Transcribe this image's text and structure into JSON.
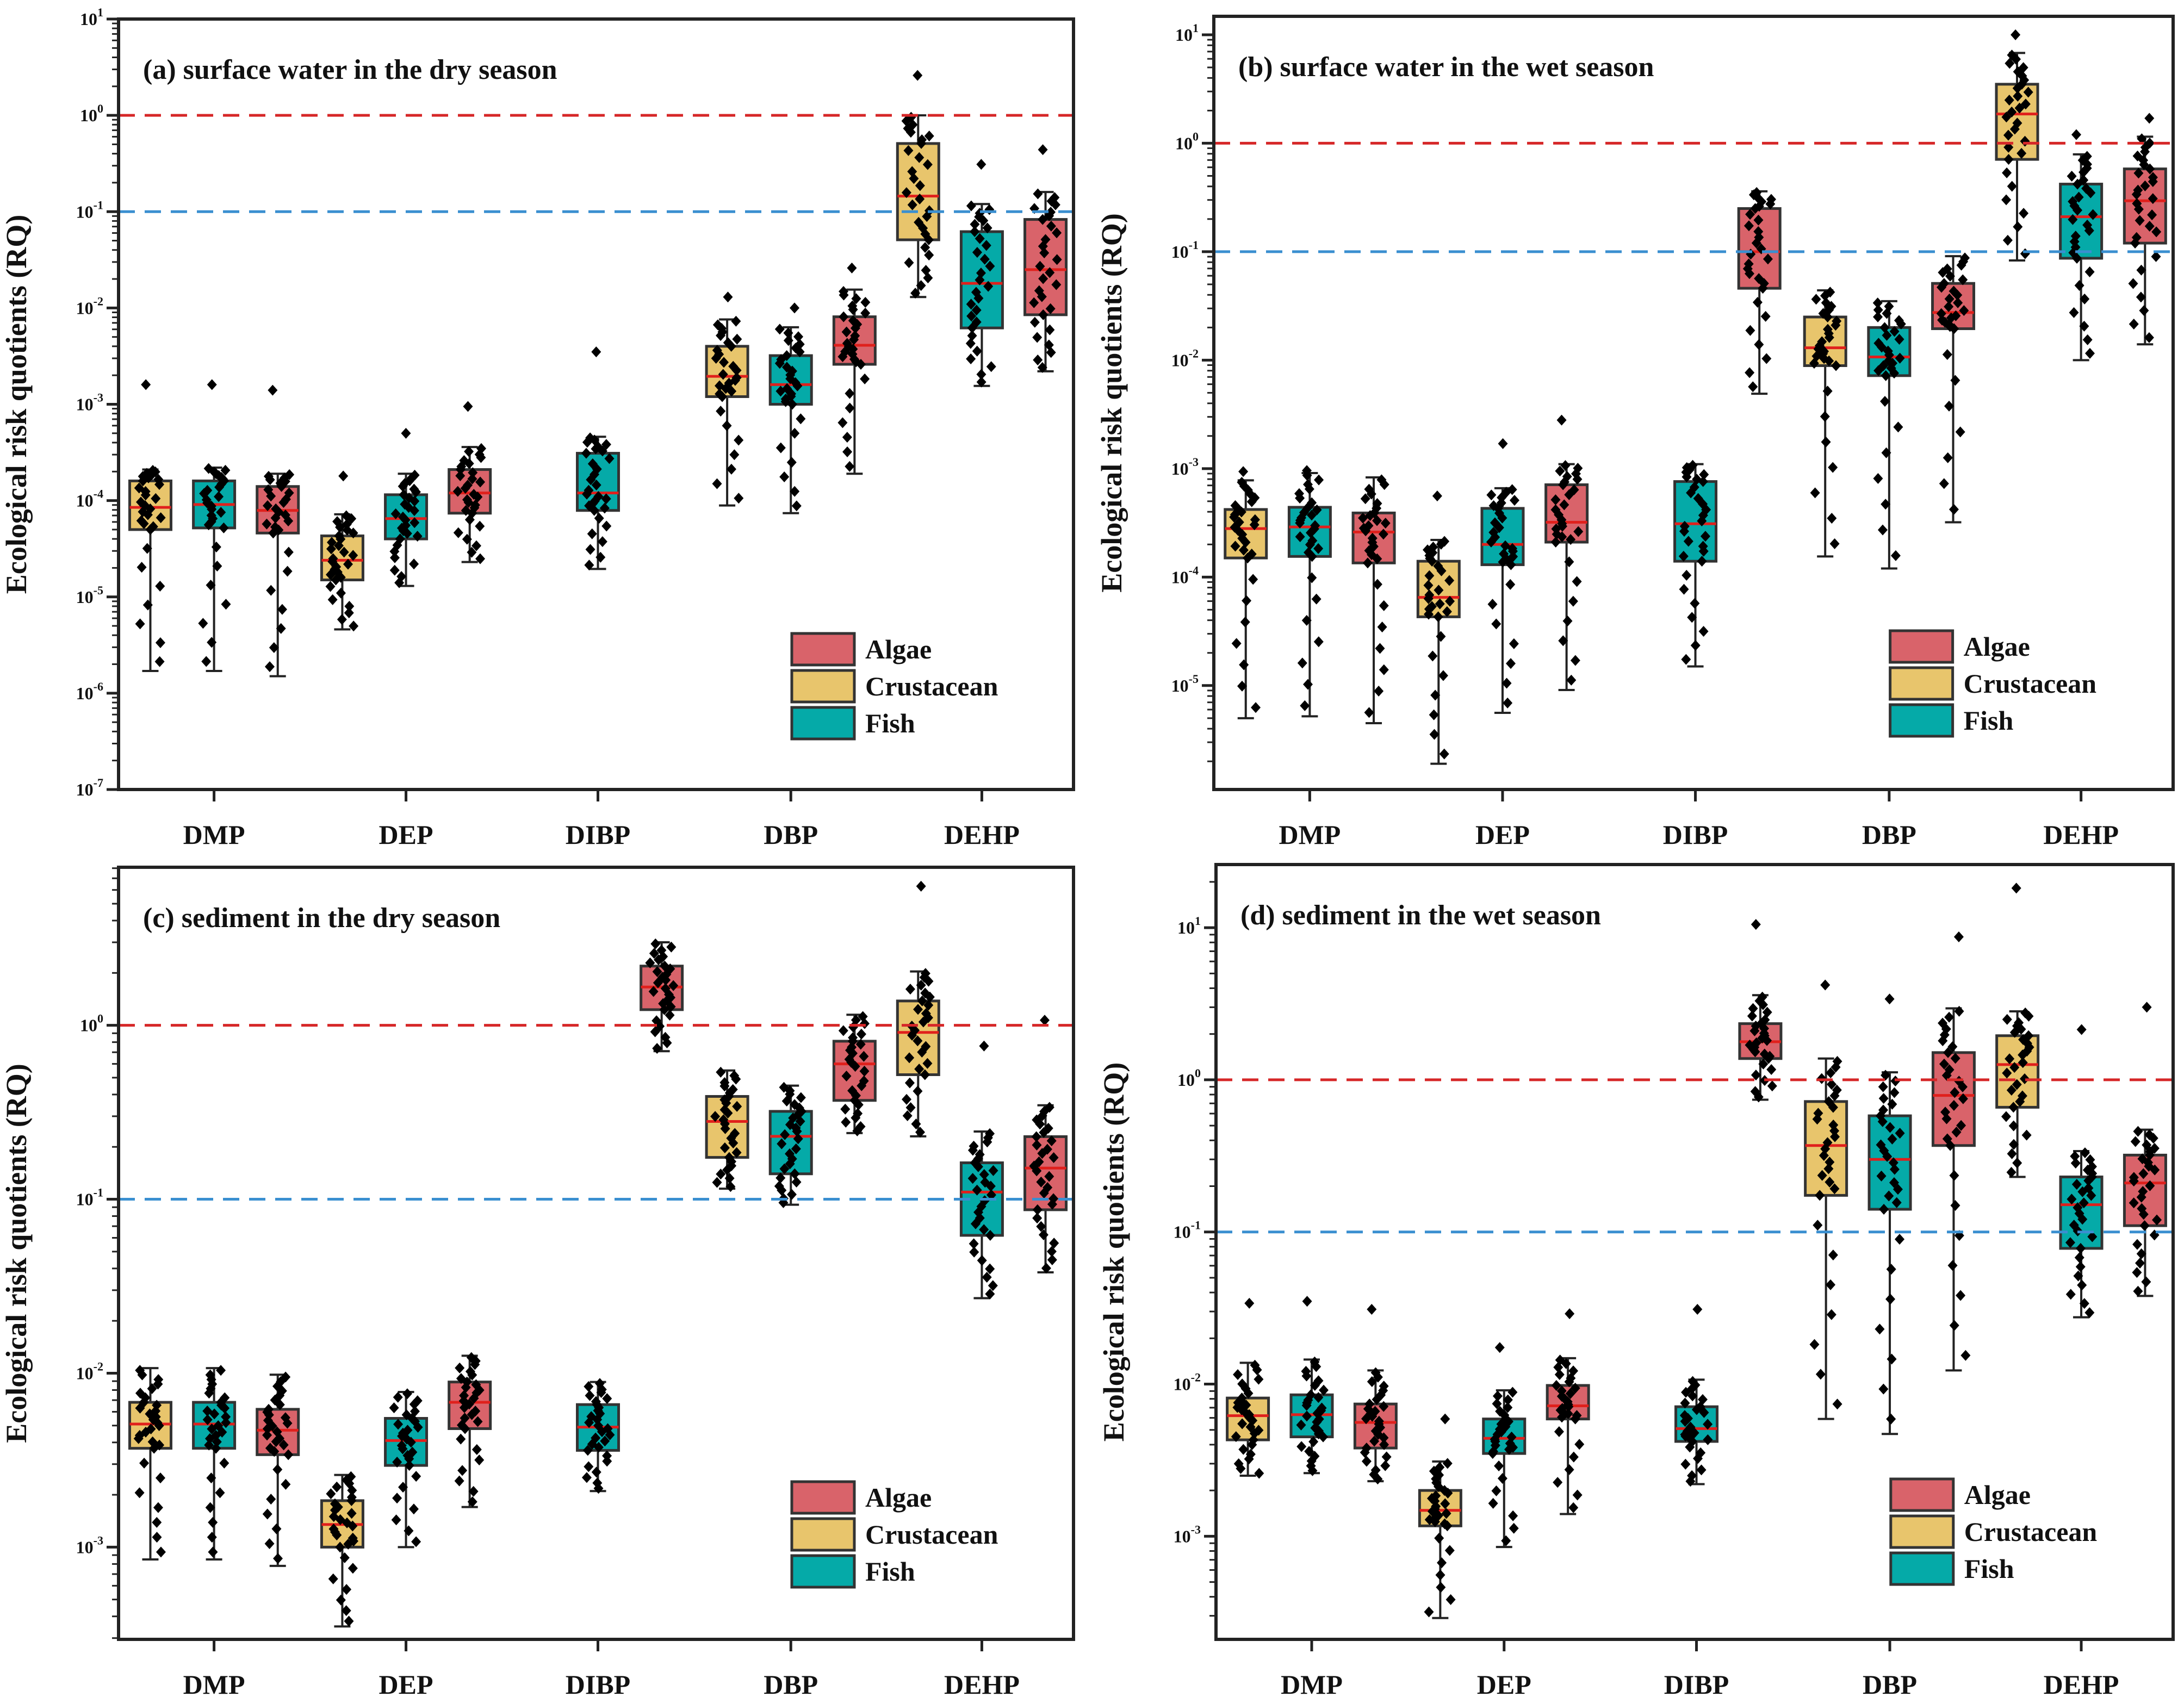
{
  "figure": {
    "y_axis_label": "Ecological risk quotients (RQ)"
  },
  "legend": [
    {
      "name": "Algae",
      "color": "#d9636a"
    },
    {
      "name": "Crustacean",
      "color": "#e8c56c"
    },
    {
      "name": "Fish",
      "color": "#05aaa8"
    }
  ],
  "colors": {
    "median": "#e0201c",
    "points": "#000000",
    "box_edge": "#333333"
  },
  "chart_data": [
    {
      "type": "box",
      "title": "(a) surface water in the dry season",
      "ylabel": "Ecological risk quotients (RQ)",
      "yscale": "log",
      "ylim": [
        1e-07,
        10
      ],
      "yticks": [
        "-7",
        "-6",
        "-5",
        "-4",
        "-3",
        "-2",
        "-1",
        "0",
        "1"
      ],
      "categories": [
        "DMP",
        "DEP",
        "DIBP",
        "DBP",
        "DEHP"
      ],
      "reference_lines": [
        {
          "value": 1,
          "color": "#d62728"
        },
        {
          "value": 0.1,
          "color": "#3a8fd0"
        }
      ],
      "boxes": [
        {
          "category": "DMP",
          "group": "Crustacean",
          "min": 1.7e-06,
          "q1": 5e-05,
          "median": 8.5e-05,
          "q3": 0.00016,
          "max": 0.00021,
          "top_point": 0.0016
        },
        {
          "category": "DMP",
          "group": "Fish",
          "min": 1.7e-06,
          "q1": 5.2e-05,
          "median": 9.1e-05,
          "q3": 0.00016,
          "max": 0.00022,
          "top_point": 0.0016
        },
        {
          "category": "DMP",
          "group": "Algae",
          "min": 1.5e-06,
          "q1": 4.6e-05,
          "median": 7.9e-05,
          "q3": 0.00014,
          "max": 0.00019,
          "top_point": 0.0014
        },
        {
          "category": "DEP",
          "group": "Crustacean",
          "min": 4.6e-06,
          "q1": 1.5e-05,
          "median": 2.4e-05,
          "q3": 4.3e-05,
          "max": 7.2e-05,
          "top_point": 0.00018
        },
        {
          "category": "DEP",
          "group": "Fish",
          "min": 1.3e-05,
          "q1": 4e-05,
          "median": 6.5e-05,
          "q3": 0.000115,
          "max": 0.00019,
          "top_point": 0.0005
        },
        {
          "category": "DEP",
          "group": "Algae",
          "min": 2.3e-05,
          "q1": 7.4e-05,
          "median": 0.00012,
          "q3": 0.00021,
          "max": 0.00036,
          "top_point": 0.00095
        },
        {
          "category": "DIBP",
          "group": "Fish",
          "min": 1.95e-05,
          "q1": 7.9e-05,
          "median": 0.00012,
          "q3": 0.00031,
          "max": 0.00046,
          "top_point": 0.0035
        },
        {
          "category": "DBP",
          "group": "Crustacean",
          "min": 8.9e-05,
          "q1": 0.0012,
          "median": 0.00195,
          "q3": 0.004,
          "max": 0.0076,
          "top_point": 0.013
        },
        {
          "category": "DBP",
          "group": "Fish",
          "min": 7.4e-05,
          "q1": 0.001,
          "median": 0.0016,
          "q3": 0.0032,
          "max": 0.0063,
          "top_point": 0.01
        },
        {
          "category": "DBP",
          "group": "Algae",
          "min": 0.00019,
          "q1": 0.0026,
          "median": 0.0041,
          "q3": 0.0081,
          "max": 0.0155,
          "top_point": 0.026
        },
        {
          "category": "DEHP",
          "group": "Crustacean",
          "min": 0.013,
          "q1": 0.051,
          "median": 0.145,
          "q3": 0.51,
          "max": 1.0,
          "top_point": 2.6
        },
        {
          "category": "DEHP",
          "group": "Fish",
          "min": 0.00155,
          "q1": 0.0062,
          "median": 0.018,
          "q3": 0.062,
          "max": 0.12,
          "top_point": 0.31
        },
        {
          "category": "DEHP",
          "group": "Algae",
          "min": 0.0022,
          "q1": 0.0085,
          "median": 0.025,
          "q3": 0.083,
          "max": 0.16,
          "top_point": 0.44
        }
      ]
    },
    {
      "type": "box",
      "title": "(b) surface water in the wet season",
      "ylabel": "Ecological risk quotients (RQ)",
      "yscale": "log",
      "ylim": [
        1.1e-06,
        14.8
      ],
      "yticks": [
        "-5",
        "-4",
        "-3",
        "-2",
        "-1",
        "0",
        "1"
      ],
      "categories": [
        "DMP",
        "DEP",
        "DIBP",
        "DBP",
        "DEHP"
      ],
      "reference_lines": [
        {
          "value": 1,
          "color": "#d62728"
        },
        {
          "value": 0.1,
          "color": "#3a8fd0"
        }
      ],
      "boxes": [
        {
          "category": "DMP",
          "group": "Crustacean",
          "min": 5e-06,
          "q1": 0.00015,
          "median": 0.00028,
          "q3": 0.00042,
          "max": 0.00078,
          "top_point": 0.00094
        },
        {
          "category": "DMP",
          "group": "Fish",
          "min": 5.2e-06,
          "q1": 0.000155,
          "median": 0.00029,
          "q3": 0.00044,
          "max": 0.00091,
          "top_point": 0.00096
        },
        {
          "category": "DMP",
          "group": "Algae",
          "min": 4.5e-06,
          "q1": 0.000135,
          "median": 0.00026,
          "q3": 0.00039,
          "max": 0.00083,
          "top_point": 0.00083
        },
        {
          "category": "DEP",
          "group": "Crustacean",
          "min": 1.9e-06,
          "q1": 4.3e-05,
          "median": 6.5e-05,
          "q3": 0.00014,
          "max": 0.00022,
          "top_point": 0.00056
        },
        {
          "category": "DEP",
          "group": "Fish",
          "min": 5.6e-06,
          "q1": 0.00013,
          "median": 0.0002,
          "q3": 0.00043,
          "max": 0.00066,
          "top_point": 0.0017
        },
        {
          "category": "DEP",
          "group": "Algae",
          "min": 9.1e-06,
          "q1": 0.00021,
          "median": 0.00032,
          "q3": 0.00071,
          "max": 0.0011,
          "top_point": 0.0028
        },
        {
          "category": "DIBP",
          "group": "Fish",
          "min": 1.5e-05,
          "q1": 0.00014,
          "median": 0.00031,
          "q3": 0.00076,
          "max": 0.0011,
          "top_point": 0.0011
        },
        {
          "category": "DIBP",
          "group": "Algae",
          "min": 0.0049,
          "q1": 0.046,
          "median": 0.1,
          "q3": 0.25,
          "max": 0.36,
          "top_point": 0.36
        },
        {
          "category": "DBP",
          "group": "Crustacean",
          "min": 0.000155,
          "q1": 0.0089,
          "median": 0.013,
          "q3": 0.025,
          "max": 0.044,
          "top_point": 0.044
        },
        {
          "category": "DBP",
          "group": "Fish",
          "min": 0.00012,
          "q1": 0.0072,
          "median": 0.0107,
          "q3": 0.02,
          "max": 0.035,
          "top_point": 0.035
        },
        {
          "category": "DBP",
          "group": "Algae",
          "min": 0.00032,
          "q1": 0.0195,
          "median": 0.0275,
          "q3": 0.051,
          "max": 0.091,
          "top_point": 0.091
        },
        {
          "category": "DEHP",
          "group": "Crustacean",
          "min": 0.083,
          "q1": 0.71,
          "median": 1.86,
          "q3": 3.5,
          "max": 6.8,
          "top_point": 10
        },
        {
          "category": "DEHP",
          "group": "Fish",
          "min": 0.01,
          "q1": 0.087,
          "median": 0.21,
          "q3": 0.42,
          "max": 0.79,
          "top_point": 1.2
        },
        {
          "category": "DEHP",
          "group": "Algae",
          "min": 0.014,
          "q1": 0.12,
          "median": 0.295,
          "q3": 0.58,
          "max": 1.15,
          "top_point": 1.7
        }
      ]
    },
    {
      "type": "box",
      "title": "(c) sediment in the dry season",
      "ylabel": "Ecological risk quotients (RQ)",
      "yscale": "log",
      "ylim": [
        0.000295,
        8.1
      ],
      "yticks": [
        "-3",
        "-2",
        "-1",
        "0"
      ],
      "categories": [
        "DMP",
        "DEP",
        "DIBP",
        "DBP",
        "DEHP"
      ],
      "reference_lines": [
        {
          "value": 1,
          "color": "#d62728"
        },
        {
          "value": 0.1,
          "color": "#3a8fd0"
        }
      ],
      "boxes": [
        {
          "category": "DMP",
          "group": "Crustacean",
          "min": 0.00085,
          "q1": 0.0037,
          "median": 0.0051,
          "q3": 0.0068,
          "max": 0.0107,
          "top_point": 0.0107
        },
        {
          "category": "DMP",
          "group": "Fish",
          "min": 0.00085,
          "q1": 0.0037,
          "median": 0.0051,
          "q3": 0.0068,
          "max": 0.0107,
          "top_point": 0.0107
        },
        {
          "category": "DMP",
          "group": "Algae",
          "min": 0.00078,
          "q1": 0.0034,
          "median": 0.0047,
          "q3": 0.0062,
          "max": 0.0098,
          "top_point": 0.0098
        },
        {
          "category": "DEP",
          "group": "Crustacean",
          "min": 0.00035,
          "q1": 0.001,
          "median": 0.00135,
          "q3": 0.00185,
          "max": 0.0026,
          "top_point": 0.0026
        },
        {
          "category": "DEP",
          "group": "Fish",
          "min": 0.001,
          "q1": 0.00295,
          "median": 0.0041,
          "q3": 0.0055,
          "max": 0.0078,
          "top_point": 0.0078
        },
        {
          "category": "DEP",
          "group": "Algae",
          "min": 0.0017,
          "q1": 0.0048,
          "median": 0.0068,
          "q3": 0.0089,
          "max": 0.0126,
          "top_point": 0.0126
        },
        {
          "category": "DIBP",
          "group": "Fish",
          "min": 0.0021,
          "q1": 0.0036,
          "median": 0.0049,
          "q3": 0.0066,
          "max": 0.0089,
          "top_point": 0.0089
        },
        {
          "category": "DIBP",
          "group": "Algae",
          "min": 0.71,
          "q1": 1.23,
          "median": 1.66,
          "q3": 2.19,
          "max": 3.0,
          "top_point": 3.0
        },
        {
          "category": "DBP",
          "group": "Crustacean",
          "min": 0.115,
          "q1": 0.174,
          "median": 0.28,
          "q3": 0.39,
          "max": 0.55,
          "top_point": 0.55
        },
        {
          "category": "DBP",
          "group": "Fish",
          "min": 0.093,
          "q1": 0.14,
          "median": 0.23,
          "q3": 0.32,
          "max": 0.45,
          "top_point": 0.45
        },
        {
          "category": "DBP",
          "group": "Algae",
          "min": 0.24,
          "q1": 0.37,
          "median": 0.6,
          "q3": 0.81,
          "max": 1.15,
          "top_point": 1.15
        },
        {
          "category": "DEHP",
          "group": "Crustacean",
          "min": 0.23,
          "q1": 0.52,
          "median": 0.91,
          "q3": 1.38,
          "max": 2.04,
          "top_point": 6.3
        },
        {
          "category": "DEHP",
          "group": "Fish",
          "min": 0.027,
          "q1": 0.062,
          "median": 0.11,
          "q3": 0.162,
          "max": 0.245,
          "top_point": 0.76
        },
        {
          "category": "DEHP",
          "group": "Algae",
          "min": 0.038,
          "q1": 0.087,
          "median": 0.151,
          "q3": 0.229,
          "max": 0.347,
          "top_point": 1.07
        }
      ]
    },
    {
      "type": "box",
      "title": "(d) sediment in the wet season",
      "ylabel": "Ecological risk quotients (RQ)",
      "yscale": "log",
      "ylim": [
        0.00021,
        26
      ],
      "yticks": [
        "-3",
        "-2",
        "-1",
        "0",
        "1"
      ],
      "categories": [
        "DMP",
        "DEP",
        "DIBP",
        "DBP",
        "DEHP"
      ],
      "reference_lines": [
        {
          "value": 1,
          "color": "#d62728"
        },
        {
          "value": 0.1,
          "color": "#3a8fd0"
        }
      ],
      "boxes": [
        {
          "category": "DMP",
          "group": "Crustacean",
          "min": 0.0025,
          "q1": 0.0043,
          "median": 0.0062,
          "q3": 0.0081,
          "max": 0.0138,
          "top_point": 0.034
        },
        {
          "category": "DMP",
          "group": "Fish",
          "min": 0.0026,
          "q1": 0.0045,
          "median": 0.0063,
          "q3": 0.0085,
          "max": 0.0145,
          "top_point": 0.035
        },
        {
          "category": "DMP",
          "group": "Algae",
          "min": 0.0023,
          "q1": 0.0038,
          "median": 0.0056,
          "q3": 0.0074,
          "max": 0.0123,
          "top_point": 0.031
        },
        {
          "category": "DEP",
          "group": "Crustacean",
          "min": 0.00029,
          "q1": 0.00117,
          "median": 0.00148,
          "q3": 0.002,
          "max": 0.0031,
          "top_point": 0.0059
        },
        {
          "category": "DEP",
          "group": "Fish",
          "min": 0.00085,
          "q1": 0.0035,
          "median": 0.0044,
          "q3": 0.0059,
          "max": 0.0091,
          "top_point": 0.0174
        },
        {
          "category": "DEP",
          "group": "Algae",
          "min": 0.0014,
          "q1": 0.0059,
          "median": 0.0072,
          "q3": 0.0098,
          "max": 0.0148,
          "top_point": 0.029
        },
        {
          "category": "DIBP",
          "group": "Fish",
          "min": 0.0022,
          "q1": 0.0042,
          "median": 0.0051,
          "q3": 0.0071,
          "max": 0.0107,
          "top_point": 0.031
        },
        {
          "category": "DIBP",
          "group": "Algae",
          "min": 0.74,
          "q1": 1.38,
          "median": 1.78,
          "q3": 2.34,
          "max": 3.6,
          "top_point": 10.5
        },
        {
          "category": "DBP",
          "group": "Crustacean",
          "min": 0.0059,
          "q1": 0.174,
          "median": 0.37,
          "q3": 0.72,
          "max": 1.38,
          "top_point": 4.2
        },
        {
          "category": "DBP",
          "group": "Fish",
          "min": 0.0047,
          "q1": 0.141,
          "median": 0.3,
          "q3": 0.58,
          "max": 1.12,
          "top_point": 3.4
        },
        {
          "category": "DBP",
          "group": "Algae",
          "min": 0.0123,
          "q1": 0.37,
          "median": 0.79,
          "q3": 1.51,
          "max": 2.95,
          "top_point": 8.7
        },
        {
          "category": "DEHP",
          "group": "Crustacean",
          "min": 0.23,
          "q1": 0.66,
          "median": 1.26,
          "q3": 1.95,
          "max": 2.82,
          "top_point": 18.2
        },
        {
          "category": "DEHP",
          "group": "Fish",
          "min": 0.0275,
          "q1": 0.078,
          "median": 0.151,
          "q3": 0.23,
          "max": 0.34,
          "top_point": 2.14
        },
        {
          "category": "DEHP",
          "group": "Algae",
          "min": 0.038,
          "q1": 0.11,
          "median": 0.21,
          "q3": 0.32,
          "max": 0.47,
          "top_point": 3.0
        }
      ]
    }
  ]
}
